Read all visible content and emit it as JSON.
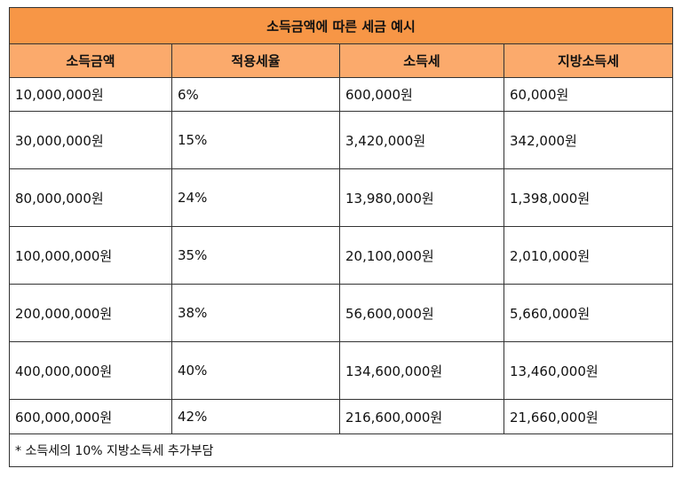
{
  "title": "소득금액에 따른 세금 예시",
  "headers": [
    "소득금액",
    "적용세율",
    "소득세",
    "지방소득세"
  ],
  "rows": [
    [
      "10,000,000원",
      "6%",
      "600,000원",
      "60,000원"
    ],
    [
      "30,000,000원",
      "15%",
      "3,420,000원",
      "342,000원"
    ],
    [
      "80,000,000원",
      "24%",
      "13,980,000원",
      "1,398,000원"
    ],
    [
      "100,000,000원",
      "35%",
      "20,100,000원",
      "2,010,000원"
    ],
    [
      "200,000,000원",
      "38%",
      "56,600,000원",
      "5,660,000원"
    ],
    [
      "400,000,000원",
      "40%",
      "134,600,000원",
      "13,460,000원"
    ],
    [
      "600,000,000원",
      "42%",
      "216,600,000원",
      "21,660,000원"
    ]
  ],
  "note": "* 소득세의 10% 지방소득세 추가부담"
}
